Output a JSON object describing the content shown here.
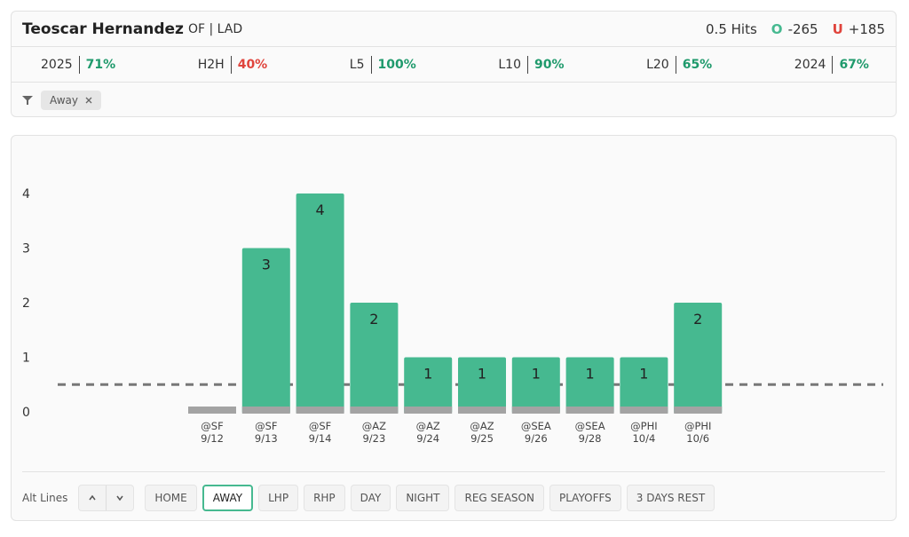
{
  "header": {
    "player": "Teoscar Hernandez",
    "position": "OF | LAD",
    "market": "0.5 Hits",
    "over_label": "O",
    "over_odds": "-265",
    "under_label": "U",
    "under_odds": "+185"
  },
  "stats": [
    {
      "label": "2025",
      "value": "71%",
      "color": "#1f9a6c"
    },
    {
      "label": "H2H",
      "value": "40%",
      "color": "#e0443c"
    },
    {
      "label": "L5",
      "value": "100%",
      "color": "#1f9a6c"
    },
    {
      "label": "L10",
      "value": "90%",
      "color": "#1f9a6c"
    },
    {
      "label": "L20",
      "value": "65%",
      "color": "#1f9a6c"
    },
    {
      "label": "2024",
      "value": "67%",
      "color": "#1f9a6c"
    }
  ],
  "filter": {
    "chip": "Away"
  },
  "chart_data": {
    "type": "bar",
    "opponents": [
      "@SF",
      "@SF",
      "@SF",
      "@AZ",
      "@AZ",
      "@AZ",
      "@SEA",
      "@SEA",
      "@PHI",
      "@PHI"
    ],
    "dates": [
      "9/12",
      "9/13",
      "9/14",
      "9/23",
      "9/24",
      "9/25",
      "9/26",
      "9/28",
      "10/4",
      "10/6"
    ],
    "values": [
      0,
      3,
      4,
      2,
      1,
      1,
      1,
      1,
      1,
      2
    ],
    "color": "#46b990",
    "base_color": "#a3a3a3",
    "line_value": 0.5,
    "ylim": [
      0,
      4
    ],
    "yticks": [
      0,
      1,
      2,
      3,
      4
    ]
  },
  "controls": {
    "alt_lines": "Alt Lines",
    "buttons": [
      "HOME",
      "AWAY",
      "LHP",
      "RHP",
      "DAY",
      "NIGHT",
      "REG SEASON",
      "PLAYOFFS",
      "3 DAYS REST"
    ],
    "active": 1
  }
}
